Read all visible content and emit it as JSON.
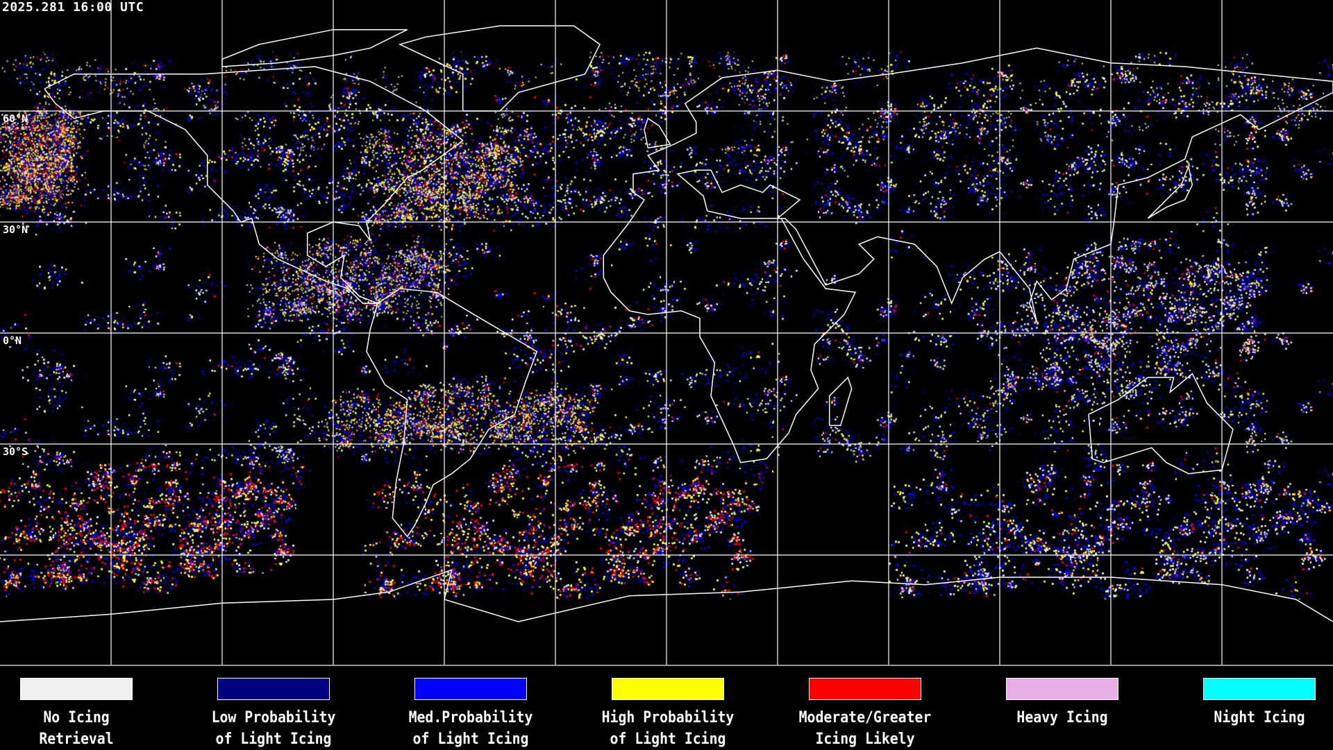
{
  "header": {
    "timestamp": "2025.281 16:00 UTC"
  },
  "map": {
    "projection": "equirectangular",
    "graticule_spacing_deg": 30,
    "lat_labels": [
      "60°N",
      "30°N",
      "0°N",
      "30°S"
    ],
    "colors": {
      "coastline": "#ffffff",
      "grid": "#ffffff",
      "background": "#000000"
    }
  },
  "legend": {
    "items": [
      {
        "label": "No Icing\nRetrieval",
        "color": "#f0f0f0"
      },
      {
        "label": "Low Probability\nof Light Icing",
        "color": "#000080"
      },
      {
        "label": "Med.Probability\nof Light Icing",
        "color": "#0000ff"
      },
      {
        "label": "High Probability\nof Light Icing",
        "color": "#ffff00"
      },
      {
        "label": "Moderate/Greater\nIcing Likely",
        "color": "#ff0000"
      },
      {
        "label": "Heavy Icing",
        "color": "#e8aee6"
      },
      {
        "label": "Night Icing",
        "color": "#00ffff"
      }
    ]
  }
}
